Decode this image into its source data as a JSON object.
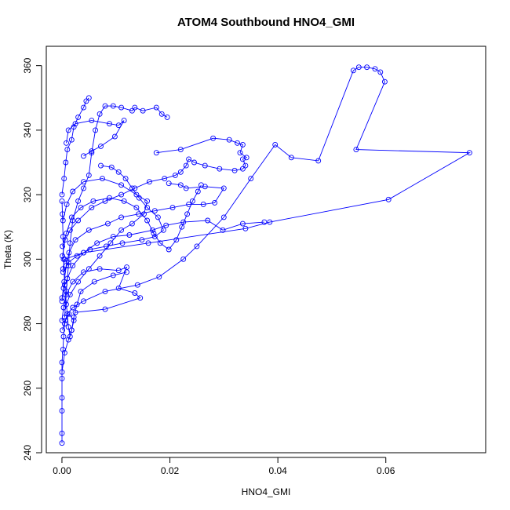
{
  "chart_data": {
    "type": "scatter",
    "title": "ATOM4 Southbound HNO4_GMI",
    "xlabel": "HNO4_GMI",
    "ylabel": "Theta (K)",
    "xlim": [
      -0.0029,
      0.0785
    ],
    "ylim": [
      240,
      366
    ],
    "xticks": [
      0.0,
      0.02,
      0.04,
      0.06
    ],
    "xtick_labels": [
      "0.00",
      "0.02",
      "0.04",
      "0.06"
    ],
    "yticks": [
      240,
      260,
      280,
      300,
      320,
      340,
      360
    ],
    "ytick_labels": [
      "240",
      "260",
      "280",
      "300",
      "320",
      "340",
      "360"
    ],
    "grid": false,
    "legend": "none",
    "colors": {
      "series": "#0000ff",
      "axes": "#000000"
    },
    "marker": "open-circle",
    "line": "connected",
    "series": [
      {
        "values": [
          [
            0.0,
            243
          ],
          [
            0.0,
            246
          ],
          [
            0.0,
            253
          ],
          [
            0.0,
            257
          ],
          [
            0.0,
            263
          ],
          [
            0.0,
            268
          ],
          [
            0.0002,
            272
          ],
          [
            0.0003,
            276
          ],
          [
            0.0005,
            280
          ],
          [
            0.001,
            283
          ],
          [
            0.002,
            285
          ],
          [
            0.004,
            287
          ],
          [
            0.008,
            290
          ],
          [
            0.014,
            292
          ],
          [
            0.018,
            294.5
          ],
          [
            0.0225,
            300
          ],
          [
            0.025,
            304
          ],
          [
            0.03,
            313
          ],
          [
            0.035,
            325
          ],
          [
            0.0395,
            335.5
          ],
          [
            0.0425,
            331.5
          ],
          [
            0.0475,
            330.5
          ],
          [
            0.054,
            358.5
          ],
          [
            0.055,
            359.5
          ],
          [
            0.0565,
            359.5
          ],
          [
            0.058,
            359
          ],
          [
            0.059,
            358
          ],
          [
            0.0598,
            355
          ],
          [
            0.0545,
            334
          ],
          [
            0.0755,
            333
          ],
          [
            0.0605,
            318.5
          ],
          [
            0.0385,
            311.5
          ],
          [
            0.034,
            309.5
          ],
          [
            0.016,
            305
          ],
          [
            0.004,
            302
          ],
          [
            0.0005,
            300
          ],
          [
            0.0002,
            297
          ]
        ]
      },
      {
        "values": [
          [
            0.0005,
            282
          ],
          [
            0.0008,
            290
          ],
          [
            0.0012,
            298
          ],
          [
            0.0015,
            305
          ],
          [
            0.002,
            312
          ],
          [
            0.003,
            318
          ],
          [
            0.004,
            322
          ],
          [
            0.005,
            326
          ],
          [
            0.0055,
            333
          ],
          [
            0.0062,
            340
          ],
          [
            0.007,
            345
          ],
          [
            0.008,
            347.5
          ],
          [
            0.0095,
            347.5
          ],
          [
            0.011,
            347
          ],
          [
            0.013,
            346
          ],
          [
            0.0135,
            347
          ],
          [
            0.015,
            346
          ],
          [
            0.0175,
            347
          ],
          [
            0.0185,
            345
          ],
          [
            0.0195,
            344
          ]
        ]
      },
      {
        "values": [
          [
            0.0001,
            301
          ],
          [
            0.0006,
            306
          ],
          [
            0.0015,
            309
          ],
          [
            0.003,
            312
          ],
          [
            0.0055,
            316
          ],
          [
            0.008,
            318
          ],
          [
            0.011,
            320
          ],
          [
            0.0135,
            322
          ],
          [
            0.0162,
            324
          ],
          [
            0.019,
            325
          ],
          [
            0.021,
            326
          ],
          [
            0.022,
            327
          ],
          [
            0.023,
            329
          ],
          [
            0.0235,
            331
          ],
          [
            0.0245,
            330
          ],
          [
            0.0265,
            329
          ],
          [
            0.0292,
            328
          ],
          [
            0.032,
            327.5
          ],
          [
            0.0335,
            328
          ],
          [
            0.034,
            329
          ],
          [
            0.0335,
            331
          ],
          [
            0.0342,
            331.5
          ],
          [
            0.033,
            333
          ],
          [
            0.0335,
            335.5
          ],
          [
            0.0325,
            336
          ],
          [
            0.031,
            337
          ],
          [
            0.028,
            337.5
          ],
          [
            0.022,
            334
          ],
          [
            0.0175,
            333
          ]
        ]
      },
      {
        "values": [
          [
            0.0,
            287
          ],
          [
            0.0004,
            293
          ],
          [
            0.0008,
            298
          ],
          [
            0.0013,
            302
          ],
          [
            0.0025,
            306
          ],
          [
            0.005,
            309
          ],
          [
            0.0085,
            311
          ],
          [
            0.011,
            313
          ],
          [
            0.0142,
            314
          ],
          [
            0.0172,
            315
          ],
          [
            0.0205,
            316
          ],
          [
            0.0235,
            317
          ],
          [
            0.0262,
            317
          ],
          [
            0.0283,
            317.5
          ],
          [
            0.03,
            322
          ],
          [
            0.0265,
            322.5
          ],
          [
            0.023,
            322
          ],
          [
            0.022,
            323
          ],
          [
            0.0198,
            323.5
          ]
        ]
      },
      {
        "values": [
          [
            0.0002,
            312
          ],
          [
            0.0009,
            317
          ],
          [
            0.002,
            321
          ],
          [
            0.004,
            324
          ],
          [
            0.0075,
            325
          ],
          [
            0.011,
            323
          ],
          [
            0.0138,
            320
          ],
          [
            0.0158,
            318
          ],
          [
            0.0152,
            314
          ],
          [
            0.013,
            311
          ],
          [
            0.011,
            309
          ],
          [
            0.009,
            305
          ],
          [
            0.007,
            301
          ],
          [
            0.005,
            297
          ],
          [
            0.003,
            293
          ],
          [
            0.0015,
            289
          ],
          [
            0.0008,
            286
          ]
        ]
      },
      {
        "values": [
          [
            0.0,
            281
          ],
          [
            0.0003,
            285
          ],
          [
            0.0008,
            289
          ],
          [
            0.002,
            293
          ],
          [
            0.004,
            296
          ],
          [
            0.007,
            297
          ],
          [
            0.0105,
            296.5
          ],
          [
            0.012,
            297.5
          ],
          [
            0.0105,
            291
          ],
          [
            0.0135,
            289.5
          ],
          [
            0.0145,
            288
          ],
          [
            0.008,
            284.5
          ],
          [
            0.0025,
            283.5
          ]
        ]
      },
      {
        "values": [
          [
            0.0,
            288
          ],
          [
            0.0003,
            291
          ],
          [
            0.001,
            294
          ],
          [
            0.002,
            298
          ],
          [
            0.004,
            302
          ],
          [
            0.0065,
            305
          ],
          [
            0.0095,
            307
          ],
          [
            0.0125,
            307.5
          ],
          [
            0.0168,
            309
          ],
          [
            0.0193,
            310.5
          ],
          [
            0.0225,
            311.5
          ],
          [
            0.027,
            312
          ],
          [
            0.0298,
            309
          ],
          [
            0.0335,
            311
          ],
          [
            0.0375,
            311.5
          ]
        ]
      },
      {
        "values": [
          [
            0.0,
            320
          ],
          [
            0.0004,
            325
          ],
          [
            0.0007,
            330
          ],
          [
            0.001,
            334
          ],
          [
            0.0018,
            337
          ],
          [
            0.0022,
            341
          ],
          [
            0.003,
            344
          ],
          [
            0.004,
            347
          ],
          [
            0.0045,
            349
          ],
          [
            0.005,
            350
          ]
        ]
      },
      {
        "values": [
          [
            0.0,
            265
          ],
          [
            0.0005,
            271
          ],
          [
            0.0012,
            275
          ],
          [
            0.0018,
            278
          ],
          [
            0.0022,
            282
          ],
          [
            0.0028,
            286
          ],
          [
            0.0035,
            290
          ],
          [
            0.006,
            293
          ],
          [
            0.0095,
            295
          ],
          [
            0.012,
            296
          ]
        ]
      },
      {
        "values": [
          [
            0.0001,
            304
          ],
          [
            0.0008,
            308
          ],
          [
            0.0018,
            313
          ],
          [
            0.0035,
            316
          ],
          [
            0.0058,
            318
          ],
          [
            0.0088,
            319
          ],
          [
            0.0115,
            318
          ],
          [
            0.0138,
            316
          ],
          [
            0.0158,
            312
          ],
          [
            0.017,
            308
          ],
          [
            0.0182,
            305
          ],
          [
            0.0198,
            303
          ],
          [
            0.0212,
            306
          ],
          [
            0.0222,
            310
          ],
          [
            0.0232,
            314
          ],
          [
            0.0242,
            318
          ],
          [
            0.0252,
            321
          ],
          [
            0.0258,
            323
          ]
        ]
      },
      {
        "values": [
          [
            0.0002,
            296
          ],
          [
            0.0012,
            299
          ],
          [
            0.0028,
            301
          ],
          [
            0.0052,
            303
          ],
          [
            0.0082,
            304
          ],
          [
            0.0112,
            305
          ],
          [
            0.0148,
            306
          ],
          [
            0.0172,
            307
          ],
          [
            0.0188,
            309
          ],
          [
            0.0178,
            313
          ],
          [
            0.0158,
            316
          ],
          [
            0.0143,
            319
          ],
          [
            0.013,
            322
          ],
          [
            0.0118,
            325
          ],
          [
            0.0105,
            327
          ],
          [
            0.0092,
            328.5
          ],
          [
            0.0072,
            329
          ]
        ]
      },
      {
        "values": [
          [
            0.0001,
            278
          ],
          [
            0.0006,
            281
          ],
          [
            0.0013,
            283
          ],
          [
            0.0022,
            281
          ],
          [
            0.0018,
            278
          ],
          [
            0.0015,
            276
          ],
          [
            0.0012,
            279
          ],
          [
            0.0005,
            292
          ],
          [
            0.0003,
            300
          ],
          [
            0.0002,
            307
          ],
          [
            0.0001,
            314
          ],
          [
            0.0,
            318
          ]
        ]
      },
      {
        "values": [
          [
            0.0008,
            336
          ],
          [
            0.0012,
            340
          ],
          [
            0.0025,
            342
          ],
          [
            0.0055,
            343
          ],
          [
            0.0088,
            342
          ],
          [
            0.0105,
            341.5
          ],
          [
            0.0115,
            343
          ],
          [
            0.0098,
            338
          ],
          [
            0.0072,
            335
          ],
          [
            0.0055,
            333.5
          ],
          [
            0.004,
            332
          ]
        ]
      }
    ]
  }
}
